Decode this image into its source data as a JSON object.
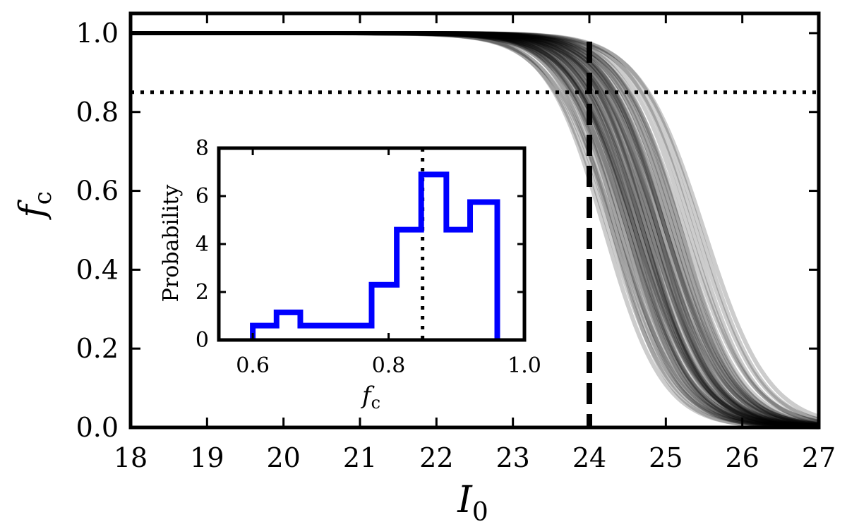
{
  "chart_data": [
    {
      "type": "line",
      "xlabel": "I",
      "xlabel_subscript": "0",
      "ylabel": "f",
      "ylabel_subscript": "c",
      "xlim": [
        18,
        27
      ],
      "ylim": [
        0.0,
        1.05
      ],
      "xticks": [
        "18",
        "19",
        "20",
        "21",
        "22",
        "23",
        "24",
        "25",
        "26",
        "27"
      ],
      "yticks": [
        "0.0",
        "0.2",
        "0.4",
        "0.6",
        "0.8",
        "1.0"
      ],
      "grid": false,
      "series_description": "ensemble of 60 semi-transparent logistic curves f_c(I0) = 1/(1+exp((I0 - m)/w))",
      "midpoints": [
        24.2,
        24.25,
        24.3,
        24.35,
        24.4,
        24.45,
        24.5,
        24.5,
        24.55,
        24.6,
        24.6,
        24.65,
        24.7,
        24.7,
        24.75,
        24.8,
        24.8,
        24.85,
        24.9,
        24.9,
        24.95,
        25.0,
        25.0,
        25.05,
        25.1,
        25.15,
        25.2,
        25.25,
        25.3,
        25.35,
        25.4,
        25.45,
        25.5,
        24.4,
        24.5,
        24.6,
        24.7,
        24.8,
        24.9,
        25.0,
        24.55,
        24.65,
        24.75,
        24.85,
        24.95,
        25.05,
        24.3,
        24.45,
        24.6,
        24.75,
        24.9,
        25.1,
        25.2,
        24.35,
        24.55,
        24.7,
        24.85,
        25.0,
        25.15,
        24.65
      ],
      "widths": [
        0.38,
        0.4,
        0.36,
        0.42,
        0.38,
        0.4,
        0.37,
        0.41,
        0.39,
        0.4,
        0.36,
        0.42,
        0.38,
        0.4,
        0.37,
        0.41,
        0.39,
        0.4,
        0.38,
        0.42,
        0.36,
        0.4,
        0.38,
        0.41,
        0.39,
        0.4,
        0.38,
        0.42,
        0.4,
        0.39,
        0.41,
        0.4,
        0.42,
        0.37,
        0.39,
        0.41,
        0.38,
        0.4,
        0.36,
        0.42,
        0.39,
        0.38,
        0.41,
        0.37,
        0.4,
        0.39,
        0.4,
        0.38,
        0.42,
        0.36,
        0.41,
        0.39,
        0.4,
        0.38,
        0.37,
        0.41,
        0.39,
        0.4,
        0.38,
        0.4
      ],
      "curve_color": "#000000",
      "curve_alpha": 0.2,
      "hline": {
        "y": 0.85,
        "style": "dotted",
        "color": "#000000"
      },
      "vline": {
        "x": 24.0,
        "style": "dashed",
        "color": "#000000"
      }
    },
    {
      "type": "step-histogram",
      "inset": true,
      "xlabel": "f",
      "xlabel_subscript": "c",
      "ylabel": "Probability",
      "xlim": [
        0.55,
        1.0
      ],
      "ylim": [
        0,
        8
      ],
      "xticks": [
        "0.6",
        "0.8",
        "1.0"
      ],
      "yticks": [
        "0",
        "2",
        "4",
        "6",
        "8"
      ],
      "bin_edges": [
        0.6,
        0.635,
        0.67,
        0.705,
        0.74,
        0.775,
        0.812,
        0.848,
        0.885,
        0.92,
        0.96
      ],
      "values": [
        0.6,
        1.15,
        0.6,
        0.6,
        0.6,
        2.3,
        4.6,
        6.9,
        4.6,
        5.75
      ],
      "color": "#0000ff",
      "vline": {
        "x": 0.85,
        "style": "dotted",
        "color": "#000000"
      }
    }
  ]
}
